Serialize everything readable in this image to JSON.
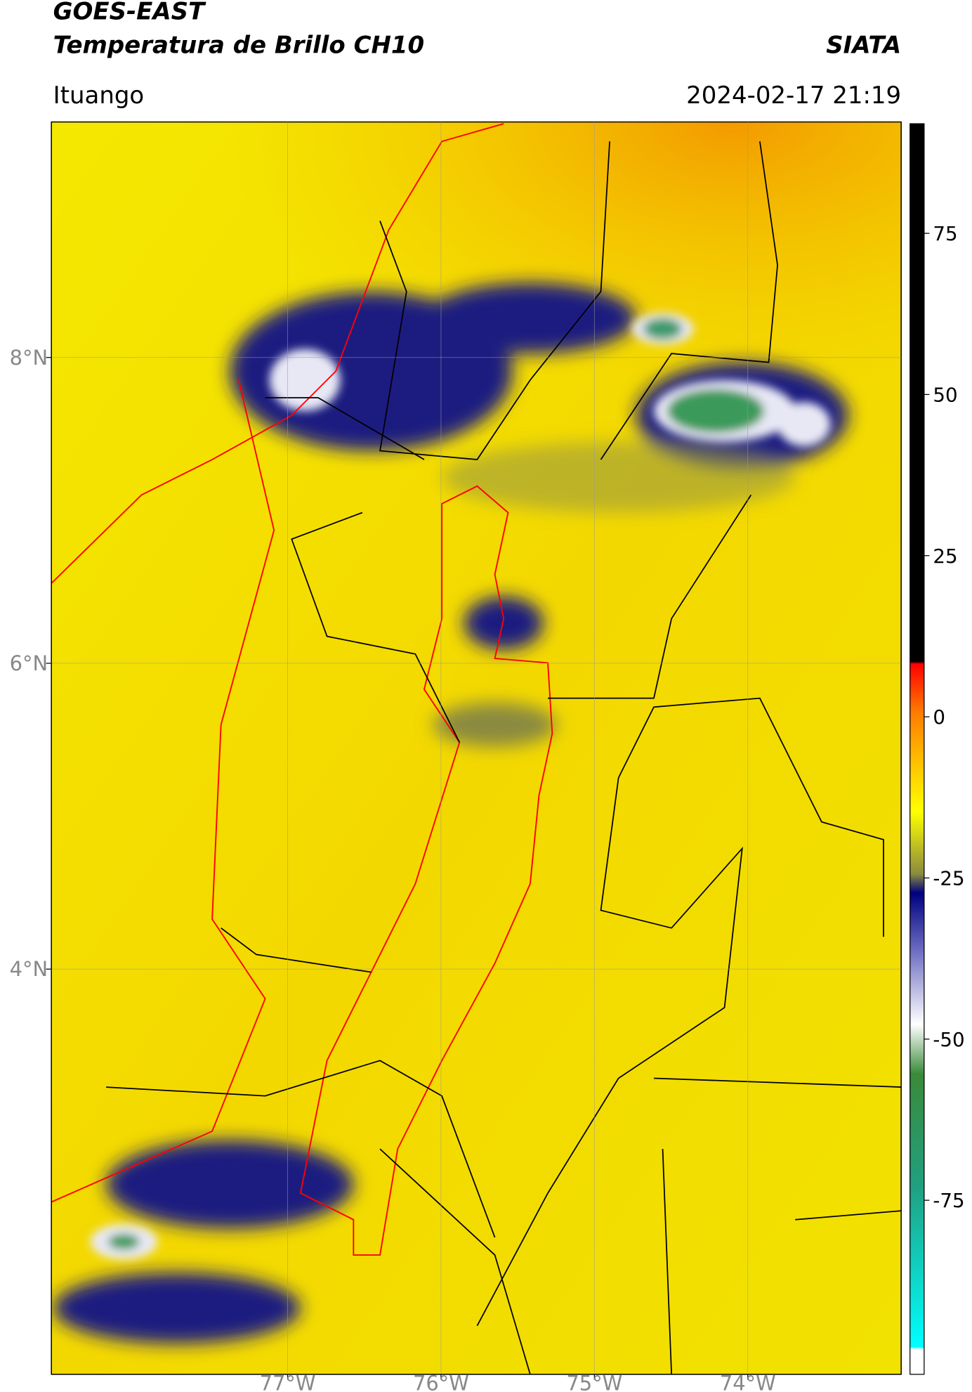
{
  "chart_data": {
    "type": "map",
    "title": "GOES-EAST",
    "subtitle": "Temperatura de Brillo CH10",
    "source": "SIATA",
    "region": "Ituango",
    "datetime": "2024-02-17 21:19",
    "xlim": [
      -78.54,
      -73.0
    ],
    "ylim": [
      1.35,
      9.54
    ],
    "xticks": [
      {
        "value": -77,
        "label": "77°W"
      },
      {
        "value": -76,
        "label": "76°W"
      },
      {
        "value": -75,
        "label": "75°W"
      },
      {
        "value": -74,
        "label": "74°W"
      }
    ],
    "yticks": [
      {
        "value": 8,
        "label": "8°N"
      },
      {
        "value": 6,
        "label": "6°N"
      },
      {
        "value": 4,
        "label": "4°N"
      }
    ],
    "grid": true,
    "colorbar": {
      "lim": [
        -102,
        92
      ],
      "ticks": [
        75,
        50,
        25,
        0,
        -25,
        -50,
        -75
      ]
    }
  }
}
